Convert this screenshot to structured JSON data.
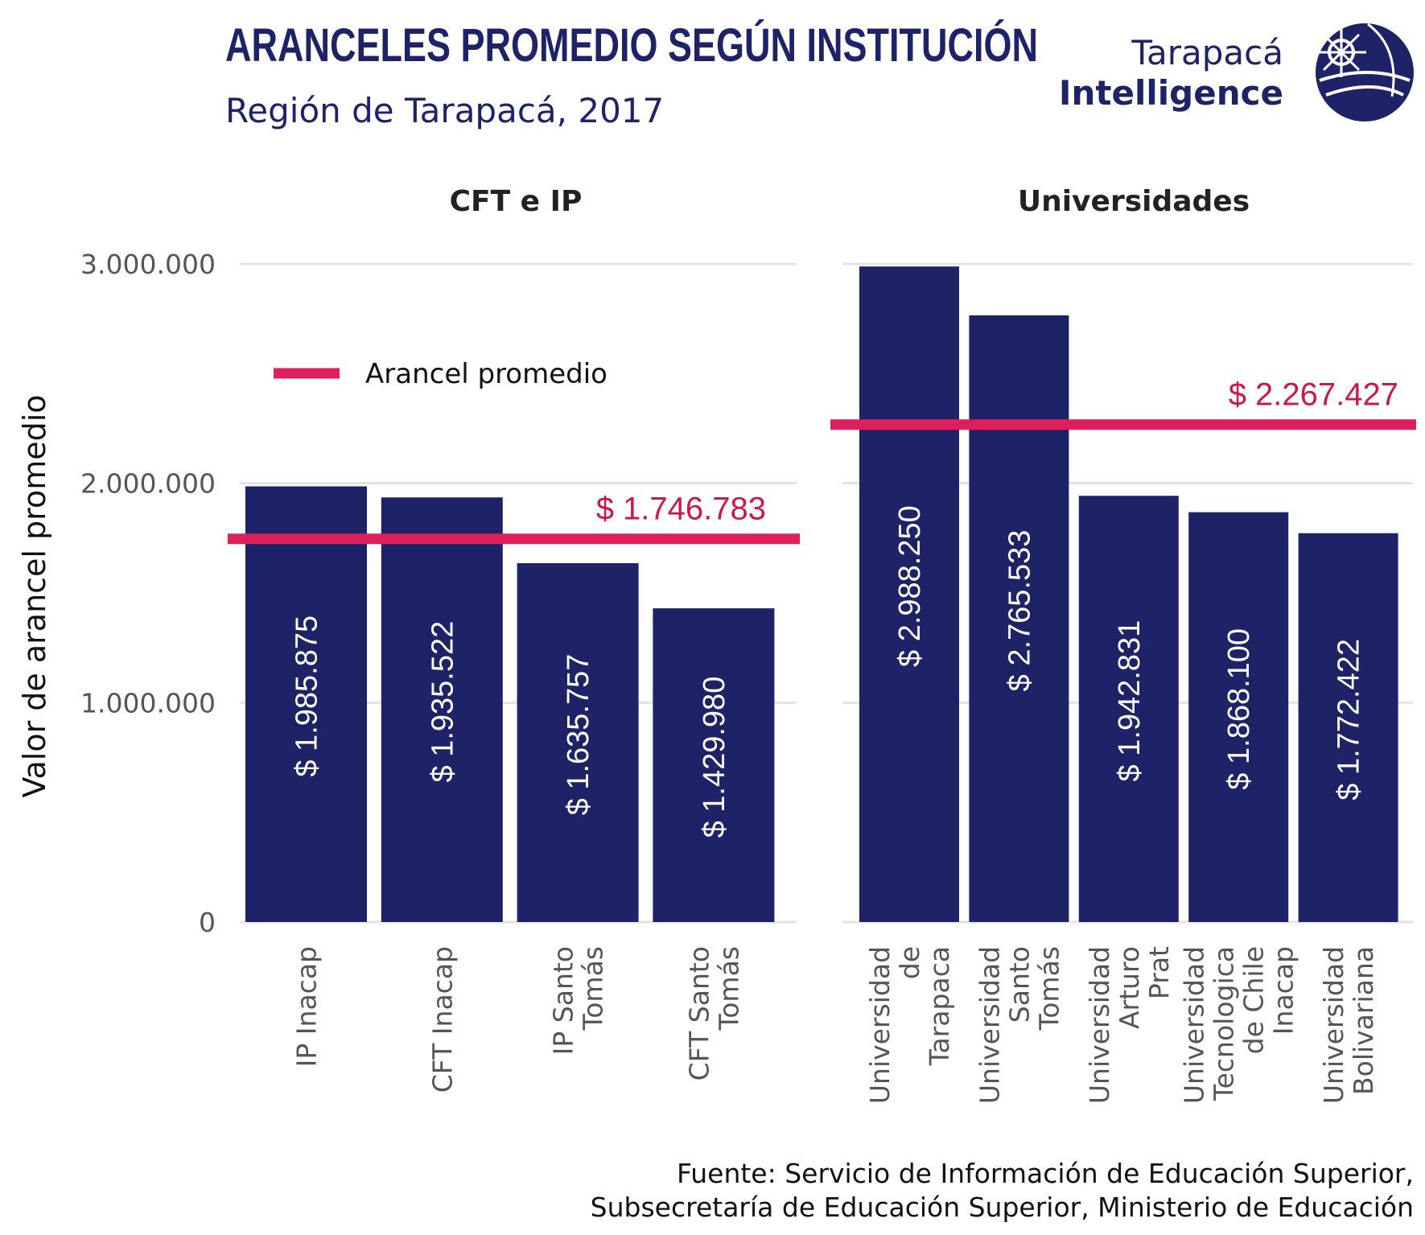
{
  "header": {
    "title": "ARANCELES PROMEDIO SEGÚN INSTITUCIÓN",
    "subtitle": "Región de Tarapacá, 2017"
  },
  "logo": {
    "line1": "Tarapacá",
    "line2": "Intelligence",
    "icon": "tarapaca-globe-logo-icon"
  },
  "legend": {
    "label": "Arancel promedio",
    "placement": "top-left of left panel"
  },
  "source": {
    "line1": "Fuente: Servicio de Información de Educación Superior,",
    "line2": "Subsecretaría de Educación Superior, Ministerio de Educación"
  },
  "colors": {
    "bar": "#1d2366",
    "avg_line": "#e01f5a",
    "avg_label": "#c8194e",
    "title": "#1d2366",
    "grid": "#e3e3e3"
  },
  "chart_data": [
    {
      "type": "bar",
      "panel_title": "CFT e IP",
      "ylabel": "Valor de arancel promedio",
      "ylim": [
        0,
        3000000
      ],
      "yticks": [
        0,
        1000000,
        2000000,
        3000000
      ],
      "ytick_labels": [
        "0",
        "1.000.000",
        "2.000.000",
        "3.000.000"
      ],
      "grid": true,
      "categories": [
        "IP Inacap",
        "CFT Inacap",
        "IP Santo Tomás",
        "CFT Santo Tomás"
      ],
      "category_label_lines": [
        [
          "IP Inacap"
        ],
        [
          "CFT Inacap"
        ],
        [
          "IP Santo",
          "Tomás"
        ],
        [
          "CFT Santo",
          "Tomás"
        ]
      ],
      "values": [
        1985875,
        1935522,
        1635757,
        1429980
      ],
      "value_labels": [
        "$ 1.985.875",
        "$ 1.935.522",
        "$ 1.635.757",
        "$ 1.429.980"
      ],
      "average": 1746783,
      "average_label": "$ 1.746.783"
    },
    {
      "type": "bar",
      "panel_title": "Universidades",
      "ylim": [
        0,
        3000000
      ],
      "grid": true,
      "categories": [
        "Universidad de Tarapaca",
        "Universidad Santo Tomás",
        "Universidad Arturo Prat",
        "Universidad Tecnologica de Chile Inacap",
        "Universidad Bolivariana"
      ],
      "category_label_lines": [
        [
          "Universidad",
          "de",
          "Tarapaca"
        ],
        [
          "Universidad",
          "Santo",
          "Tomás"
        ],
        [
          "Universidad",
          "Arturo",
          "Prat"
        ],
        [
          "Universidad",
          "Tecnologica",
          "de Chile",
          "Inacap"
        ],
        [
          "Universidad",
          "Bolivariana"
        ]
      ],
      "values": [
        2988250,
        2765533,
        1942831,
        1868100,
        1772422
      ],
      "value_labels": [
        "$ 2.988.250",
        "$ 2.765.533",
        "$ 1.942.831",
        "$ 1.868.100",
        "$ 1.772.422"
      ],
      "average": 2267427,
      "average_label": "$ 2.267.427"
    }
  ]
}
